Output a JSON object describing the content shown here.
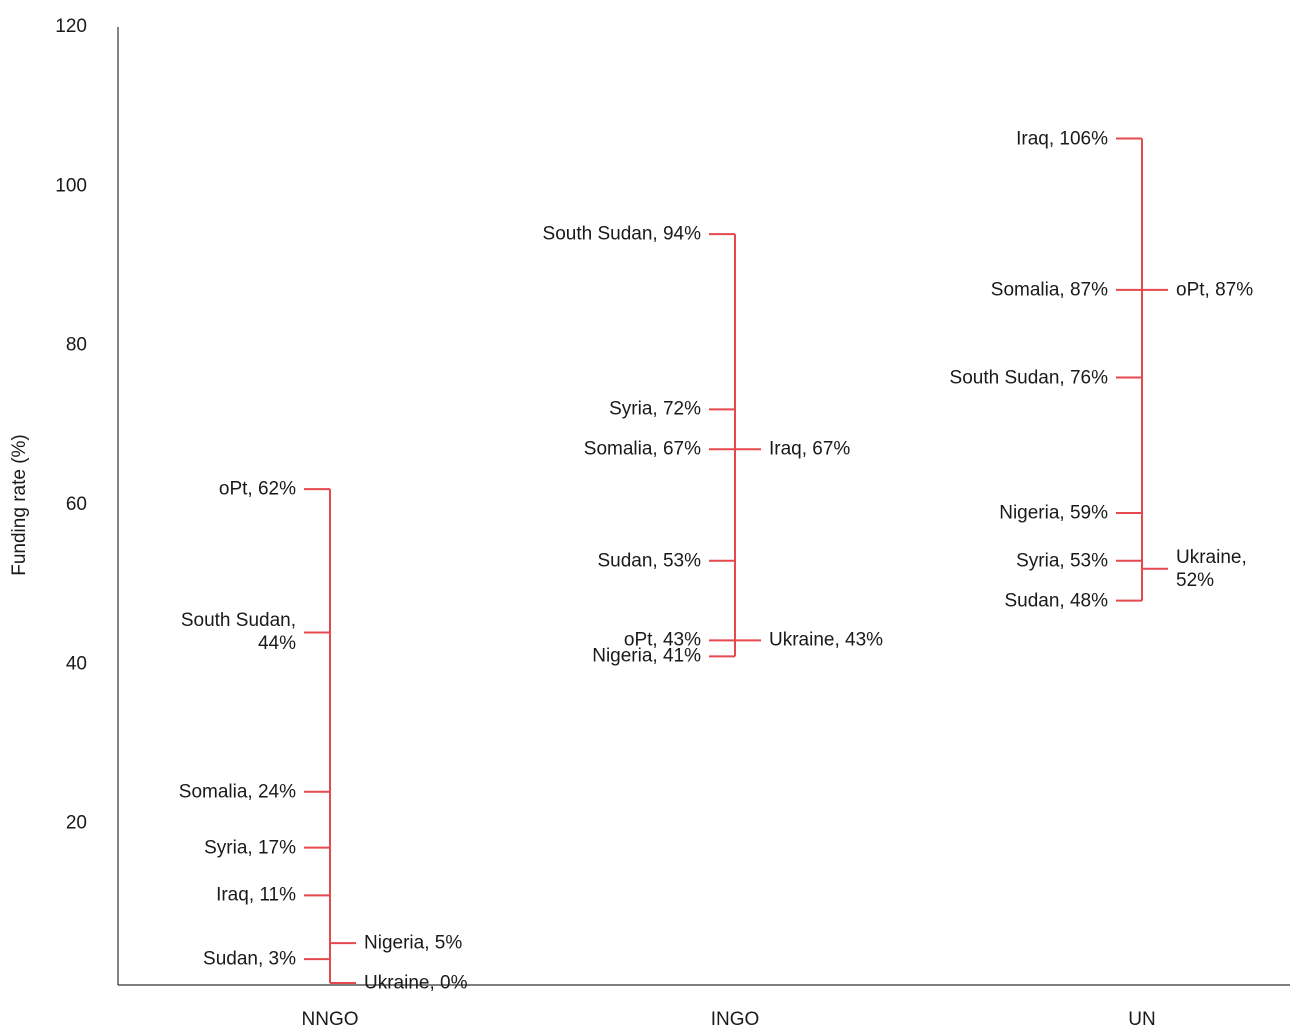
{
  "chart_data": {
    "type": "strip",
    "y_axis_label": "Funding rate (%)",
    "ylim": [
      0,
      120
    ],
    "yticks": [
      20,
      40,
      60,
      80,
      100,
      120
    ],
    "color": "#e5484d",
    "categories": [
      "NNGO",
      "INGO",
      "UN"
    ],
    "groups": [
      {
        "points": [
          {
            "label": "oPt, 62%",
            "value": 62,
            "side": "left"
          },
          {
            "label": "South Sudan, 44%",
            "value": 44,
            "side": "left"
          },
          {
            "label": "Somalia, 24%",
            "value": 24,
            "side": "left"
          },
          {
            "label": "Syria, 17%",
            "value": 17,
            "side": "left"
          },
          {
            "label": "Iraq, 11%",
            "value": 11,
            "side": "left"
          },
          {
            "label": "Sudan, 3%",
            "value": 3,
            "side": "left"
          },
          {
            "label": "Nigeria, 5%",
            "value": 5,
            "side": "right"
          },
          {
            "label": "Ukraine, 0%",
            "value": 0,
            "side": "right"
          }
        ]
      },
      {
        "points": [
          {
            "label": "South Sudan, 94%",
            "value": 94,
            "side": "left"
          },
          {
            "label": "Syria, 72%",
            "value": 72,
            "side": "left"
          },
          {
            "label": "Somalia, 67%",
            "value": 67,
            "side": "left"
          },
          {
            "label": "Sudan, 53%",
            "value": 53,
            "side": "left"
          },
          {
            "label": "oPt, 43%",
            "value": 43,
            "side": "left"
          },
          {
            "label": "Nigeria, 41%",
            "value": 41,
            "side": "left"
          },
          {
            "label": "Iraq, 67%",
            "value": 67,
            "side": "right"
          },
          {
            "label": "Ukraine, 43%",
            "value": 43,
            "side": "right"
          }
        ]
      },
      {
        "points": [
          {
            "label": "Iraq, 106%",
            "value": 106,
            "side": "left"
          },
          {
            "label": "Somalia, 87%",
            "value": 87,
            "side": "left"
          },
          {
            "label": "South Sudan, 76%",
            "value": 76,
            "side": "left"
          },
          {
            "label": "Nigeria, 59%",
            "value": 59,
            "side": "left"
          },
          {
            "label": "Syria, 53%",
            "value": 53,
            "side": "left"
          },
          {
            "label": "Sudan, 48%",
            "value": 48,
            "side": "left"
          },
          {
            "label": "oPt, 87%",
            "value": 87,
            "side": "right"
          },
          {
            "label": "Ukraine, 52%",
            "value": 52,
            "side": "right"
          }
        ]
      }
    ]
  }
}
